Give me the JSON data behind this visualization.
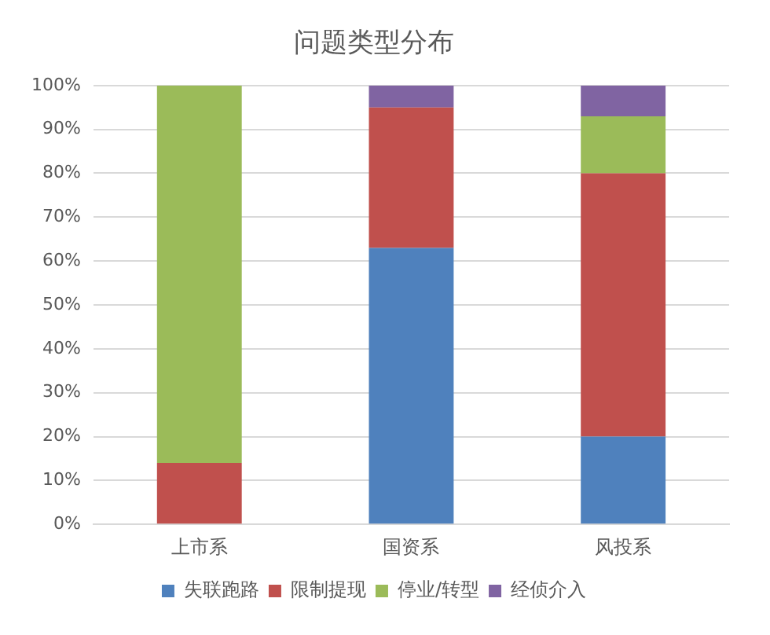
{
  "chart_data": {
    "type": "bar",
    "title": "问题类型分布",
    "categories": [
      "上市系",
      "国资系",
      "风投系"
    ],
    "stacked": true,
    "series": [
      {
        "name": "失联跑路",
        "color": "#4f81bd",
        "values": [
          0,
          63,
          20
        ]
      },
      {
        "name": "限制提现",
        "color": "#c0504d",
        "values": [
          14,
          32,
          60
        ]
      },
      {
        "name": "停业/转型",
        "color": "#9bbb59",
        "values": [
          86,
          0,
          13
        ]
      },
      {
        "name": "经侦介入",
        "color": "#8064a2",
        "values": [
          0,
          5,
          7
        ]
      }
    ],
    "ylim": [
      0,
      100
    ],
    "yticks": [
      {
        "value": 0,
        "label": "0%"
      },
      {
        "value": 10,
        "label": "10%"
      },
      {
        "value": 20,
        "label": "20%"
      },
      {
        "value": 30,
        "label": "30%"
      },
      {
        "value": 40,
        "label": "40%"
      },
      {
        "value": 50,
        "label": "50%"
      },
      {
        "value": 60,
        "label": "60%"
      },
      {
        "value": 70,
        "label": "70%"
      },
      {
        "value": 80,
        "label": "80%"
      },
      {
        "value": 90,
        "label": "90%"
      },
      {
        "value": 100,
        "label": "100%"
      }
    ],
    "grid": "y",
    "legend": "bottom"
  }
}
